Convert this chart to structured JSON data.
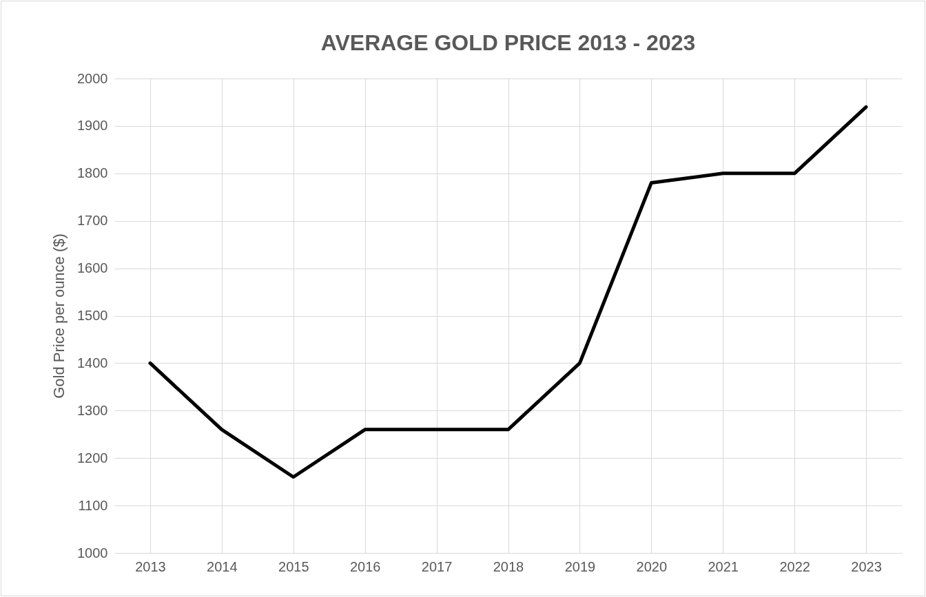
{
  "chart_data": {
    "type": "line",
    "title": "AVERAGE GOLD PRICE 2013 - 2023",
    "ylabel": "Gold Price per ounce ($)",
    "categories": [
      "2013",
      "2014",
      "2015",
      "2016",
      "2017",
      "2018",
      "2019",
      "2020",
      "2021",
      "2022",
      "2023"
    ],
    "series": [
      {
        "color": "#000000",
        "values": [
          1400,
          1260,
          1160,
          1260,
          1260,
          1260,
          1400,
          1780,
          1800,
          1800,
          1940
        ]
      }
    ],
    "ylim": [
      1000,
      2000
    ],
    "yticks": [
      1000,
      1100,
      1200,
      1300,
      1400,
      1500,
      1600,
      1700,
      1800,
      1900,
      2000
    ],
    "grid": true,
    "marker": "none",
    "line_style": "solid"
  }
}
